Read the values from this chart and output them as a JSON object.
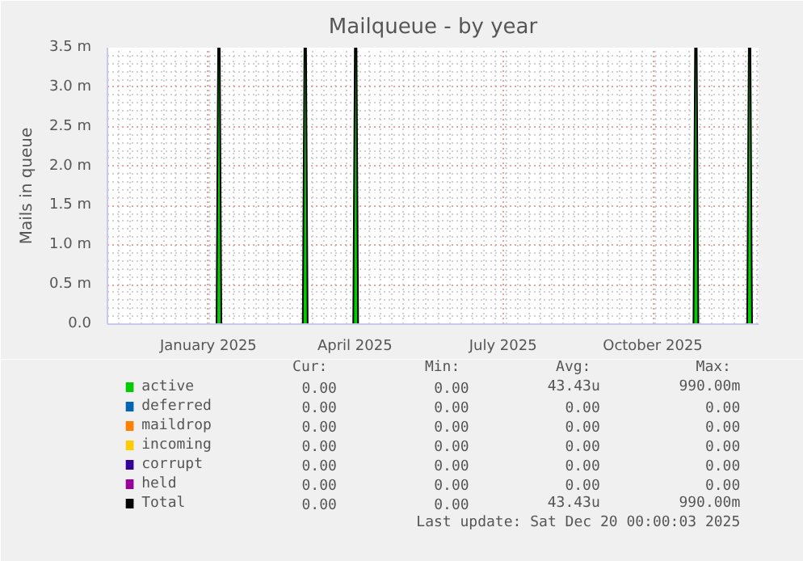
{
  "chart_data": {
    "type": "area",
    "title": "Mailqueue - by year",
    "ylabel": "Mails in queue",
    "x": [
      "2024-11-15",
      "2025-01-21",
      "2025-01-22",
      "2025-01-23",
      "2025-01-24",
      "2025-03-15",
      "2025-03-16",
      "2025-03-17",
      "2025-03-18",
      "2025-04-15",
      "2025-04-16",
      "2025-04-17",
      "2025-04-18",
      "2025-11-10",
      "2025-11-11",
      "2025-11-12",
      "2025-11-13",
      "2025-12-13",
      "2025-12-14",
      "2025-12-15",
      "2025-12-16",
      "2025-12-20"
    ],
    "series": [
      {
        "name": "active",
        "color": "#00cc00",
        "values": [
          0,
          0,
          3.5,
          3.5,
          0,
          0,
          3.5,
          3.5,
          0,
          0,
          3.5,
          3.5,
          0,
          0,
          3.5,
          3.5,
          0,
          0,
          3.5,
          3.5,
          0,
          0
        ]
      },
      {
        "name": "deferred",
        "color": "#0066b3",
        "values": [
          null,
          null,
          null,
          null,
          null,
          null,
          null,
          null,
          null,
          null,
          null,
          null,
          null,
          null,
          null,
          null,
          null,
          null,
          null,
          null,
          null,
          null
        ]
      },
      {
        "name": "maildrop",
        "color": "#ff8000",
        "values": [
          null,
          null,
          null,
          null,
          null,
          null,
          null,
          null,
          null,
          null,
          null,
          null,
          null,
          null,
          null,
          null,
          null,
          null,
          null,
          null,
          null,
          null
        ]
      },
      {
        "name": "incoming",
        "color": "#ffcc00",
        "values": [
          null,
          null,
          null,
          null,
          null,
          null,
          null,
          null,
          null,
          null,
          null,
          null,
          null,
          null,
          null,
          null,
          null,
          null,
          null,
          null,
          null,
          null
        ]
      },
      {
        "name": "corrupt",
        "color": "#330099",
        "values": [
          null,
          null,
          null,
          null,
          null,
          null,
          null,
          null,
          null,
          null,
          null,
          null,
          null,
          null,
          null,
          null,
          null,
          null,
          null,
          null,
          null,
          null
        ]
      },
      {
        "name": "held",
        "color": "#990099",
        "values": [
          null,
          null,
          null,
          null,
          null,
          null,
          null,
          null,
          null,
          null,
          null,
          null,
          null,
          null,
          null,
          null,
          null,
          null,
          null,
          null,
          null,
          null
        ]
      },
      {
        "name": "Total",
        "color": "#000000",
        "values": [
          null,
          null,
          null,
          null,
          null,
          null,
          null,
          null,
          null,
          null,
          null,
          null,
          null,
          null,
          null,
          null,
          null,
          null,
          null,
          null,
          null,
          null
        ]
      }
    ],
    "xlim": [
      "2024-11-15",
      "2025-12-20"
    ],
    "xticks": [
      {
        "value": "2025-01-16",
        "label": "January 2025"
      },
      {
        "value": "2025-04-16",
        "label": "April 2025"
      },
      {
        "value": "2025-07-16",
        "label": "July 2025"
      },
      {
        "value": "2025-10-16",
        "label": "October 2025"
      }
    ],
    "ylim": [
      0,
      3.5
    ],
    "yticks": [
      {
        "value": 0,
        "label": "0.0"
      },
      {
        "value": 0.5,
        "label": "0.5 m"
      },
      {
        "value": 1.0,
        "label": "1.0 m"
      },
      {
        "value": 1.5,
        "label": "1.5 m"
      },
      {
        "value": 2.0,
        "label": "2.0 m"
      },
      {
        "value": 2.5,
        "label": "2.5 m"
      },
      {
        "value": 3.0,
        "label": "3.0 m"
      },
      {
        "value": 3.5,
        "label": "3.5 m"
      }
    ],
    "grid": true,
    "legend": "bottom",
    "annotations": [
      "Cur:",
      "Min:",
      "Avg:",
      "Max:",
      "0.00",
      "0.00",
      "43.43u",
      "990.00m",
      "0.00",
      "0.00",
      "0.00",
      "0.00",
      "0.00",
      "0.00",
      "0.00",
      "0.00",
      "0.00",
      "0.00",
      "0.00",
      "0.00",
      "0.00",
      "0.00",
      "0.00",
      "0.00",
      "0.00",
      "0.00",
      "0.00",
      "0.00",
      "0.00",
      "0.00",
      "43.43u",
      "990.00m",
      "Last update: Sat Dec 20 00:00:03 2025"
    ]
  }
}
